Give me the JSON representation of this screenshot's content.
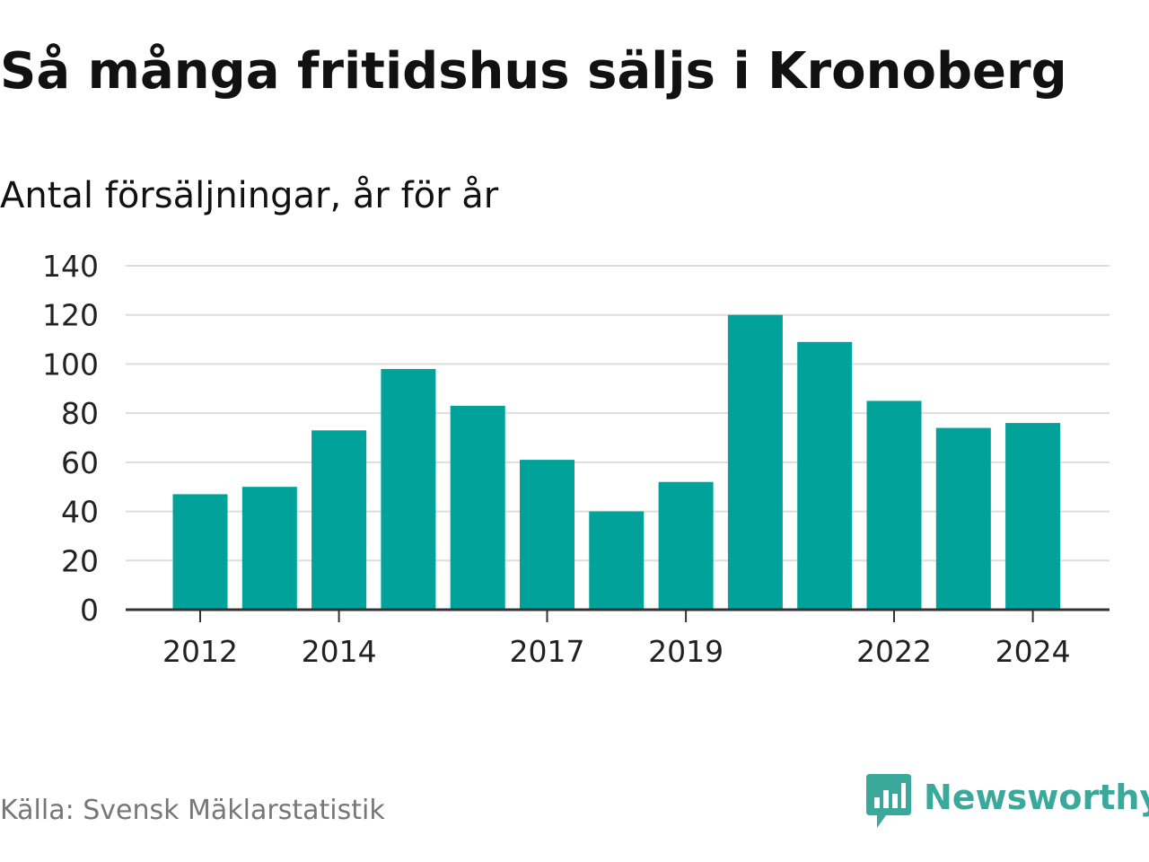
{
  "title": "Så många fritidshus säljs i Kronoberg",
  "subtitle": "Antal försäljningar, år för år",
  "source": "Källa: Svensk Mäklarstatistik",
  "logo": {
    "text": "Newsworthy",
    "icon": "bar-chart-speech-bubble-icon",
    "color": "#3aa89b"
  },
  "chart_data": {
    "type": "bar",
    "title": "Så många fritidshus säljs i Kronoberg",
    "subtitle": "Antal försäljningar, år för år",
    "xlabel": "",
    "ylabel": "",
    "categories": [
      2012,
      2013,
      2014,
      2015,
      2016,
      2017,
      2018,
      2019,
      2020,
      2021,
      2022,
      2023,
      2024
    ],
    "values": [
      47,
      50,
      73,
      98,
      83,
      61,
      40,
      52,
      120,
      109,
      85,
      74,
      76
    ],
    "x_tick_labels": [
      "2012",
      "2014",
      "2017",
      "2019",
      "2022",
      "2024"
    ],
    "y_ticks": [
      0,
      20,
      40,
      60,
      80,
      100,
      120,
      140
    ],
    "ylim": [
      0,
      140
    ],
    "grid": true,
    "legend": "none",
    "bar_color": "#00a29a",
    "grid_color": "#dddddd",
    "axis_color": "#333333"
  }
}
